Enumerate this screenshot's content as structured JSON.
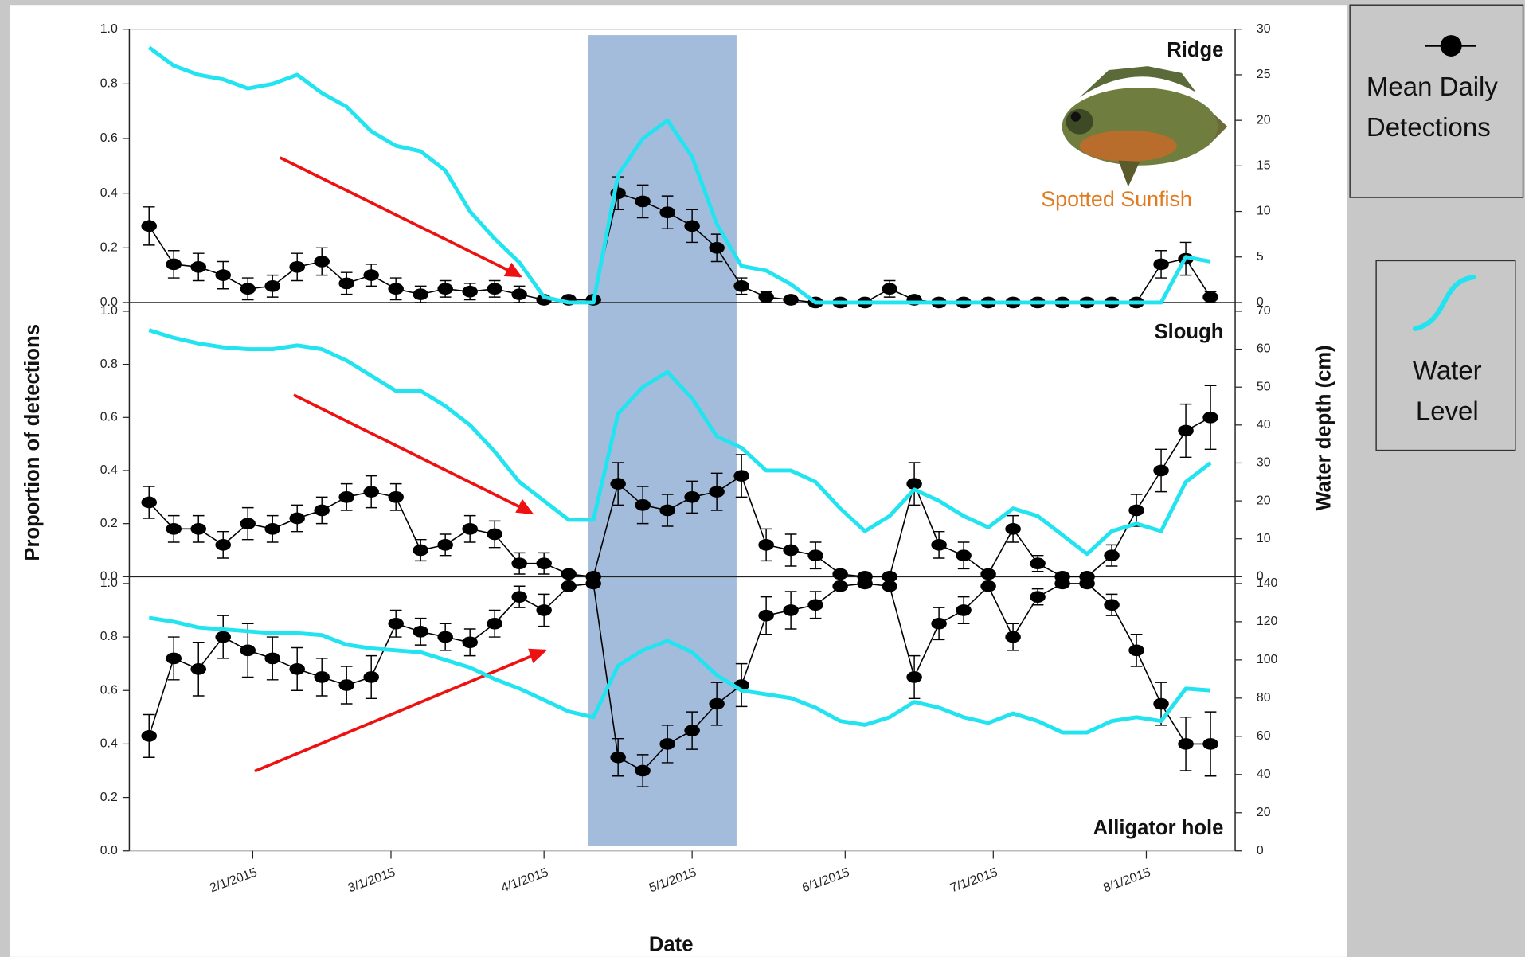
{
  "chart_data": [
    {
      "type": "line",
      "title": "Ridge",
      "annotation": "Spotted Sunfish",
      "span": [
        "4/10/2015",
        "5/10/2015"
      ],
      "span_color": "#a4bcdc",
      "x": [
        "1/11/2015",
        "1/16/2015",
        "1/21/2015",
        "1/26/2015",
        "1/31/2015",
        "2/5/2015",
        "2/10/2015",
        "2/15/2015",
        "2/20/2015",
        "2/25/2015",
        "3/2/2015",
        "3/7/2015",
        "3/12/2015",
        "3/17/2015",
        "3/22/2015",
        "3/27/2015",
        "4/1/2015",
        "4/6/2015",
        "4/11/2015",
        "4/16/2015",
        "4/21/2015",
        "4/26/2015",
        "5/1/2015",
        "5/6/2015",
        "5/11/2015",
        "5/16/2015",
        "5/21/2015",
        "5/26/2015",
        "5/31/2015",
        "6/5/2015",
        "6/10/2015",
        "6/15/2015",
        "6/20/2015",
        "6/25/2015",
        "6/30/2015",
        "7/5/2015",
        "7/10/2015",
        "7/15/2015",
        "7/20/2015",
        "7/25/2015",
        "7/30/2015",
        "8/4/2015",
        "8/9/2015",
        "8/14/2015"
      ],
      "xlim": [
        "1/7/2015",
        "8/19/2015"
      ],
      "ylim": [
        0,
        1
      ],
      "yticks": [
        {
          "value": 0,
          "label": "0.0"
        },
        0.2,
        0.4,
        0.6,
        0.8,
        {
          "value": 1,
          "label": "1.0"
        }
      ],
      "y2lim": [
        0,
        30
      ],
      "y2ticks": [
        0,
        5,
        10,
        15,
        20,
        25,
        30
      ],
      "series": [
        {
          "name": "Mean Daily Detections",
          "color": "#000000",
          "values": [
            0.28,
            0.14,
            0.13,
            0.1,
            0.05,
            0.06,
            0.13,
            0.15,
            0.07,
            0.1,
            0.05,
            0.03,
            0.05,
            0.04,
            0.05,
            0.03,
            0.01,
            0.01,
            0.01,
            0.4,
            0.37,
            0.33,
            0.28,
            0.2,
            0.06,
            0.02,
            0.01,
            0,
            0,
            0,
            0.05,
            0.01,
            0,
            0,
            0,
            0,
            0,
            0,
            0,
            0,
            0,
            0.14,
            0.16,
            0.02
          ],
          "errors": [
            0.07,
            0.05,
            0.05,
            0.05,
            0.04,
            0.04,
            0.05,
            0.05,
            0.04,
            0.04,
            0.04,
            0.03,
            0.03,
            0.03,
            0.03,
            0.03,
            0.01,
            0.01,
            0.01,
            0.06,
            0.06,
            0.06,
            0.06,
            0.05,
            0.03,
            0.02,
            0.01,
            0.01,
            0.01,
            0.01,
            0.03,
            0.01,
            0.01,
            0.01,
            0.01,
            0.01,
            0.01,
            0.01,
            0.01,
            0.01,
            0.01,
            0.05,
            0.06,
            0.02
          ]
        },
        {
          "name": "Water Level",
          "color": "#22e3f0",
          "axis": "y2",
          "values": [
            28,
            26,
            25,
            24.5,
            23.5,
            24,
            25,
            23,
            21.5,
            18.8,
            17.2,
            16.6,
            14.5,
            10,
            7,
            4.4,
            0.6,
            0,
            0,
            14,
            18,
            20,
            16,
            8.6,
            4,
            3.5,
            2,
            0,
            0,
            0,
            0,
            0,
            0,
            0,
            0,
            0,
            0,
            0,
            0,
            0,
            0,
            0,
            5,
            4.5
          ]
        }
      ]
    },
    {
      "type": "line",
      "title": "Slough",
      "ylabel": "Proportion of detections",
      "y2label": "Water depth (cm)",
      "x": [
        "1/11/2015",
        "1/16/2015",
        "1/21/2015",
        "1/26/2015",
        "1/31/2015",
        "2/5/2015",
        "2/10/2015",
        "2/15/2015",
        "2/20/2015",
        "2/25/2015",
        "3/2/2015",
        "3/7/2015",
        "3/12/2015",
        "3/17/2015",
        "3/22/2015",
        "3/27/2015",
        "4/1/2015",
        "4/6/2015",
        "4/11/2015",
        "4/16/2015",
        "4/21/2015",
        "4/26/2015",
        "5/1/2015",
        "5/6/2015",
        "5/11/2015",
        "5/16/2015",
        "5/21/2015",
        "5/26/2015",
        "5/31/2015",
        "6/5/2015",
        "6/10/2015",
        "6/15/2015",
        "6/20/2015",
        "6/25/2015",
        "6/30/2015",
        "7/5/2015",
        "7/10/2015",
        "7/15/2015",
        "7/20/2015",
        "7/25/2015",
        "7/30/2015",
        "8/4/2015",
        "8/9/2015",
        "8/14/2015"
      ],
      "xlim": [
        "1/7/2015",
        "8/19/2015"
      ],
      "ylim": [
        0,
        1
      ],
      "yticks": [
        {
          "value": 0,
          "label": "0.0"
        },
        0.2,
        0.4,
        0.6,
        0.8,
        {
          "value": 1,
          "label": "1.0"
        }
      ],
      "y2lim": [
        0,
        70
      ],
      "y2ticks": [
        0,
        10,
        20,
        30,
        40,
        50,
        60,
        70
      ],
      "series": [
        {
          "color": "#000000",
          "values": [
            0.28,
            0.18,
            0.18,
            0.12,
            0.2,
            0.18,
            0.22,
            0.25,
            0.3,
            0.32,
            0.3,
            0.1,
            0.12,
            0.18,
            0.16,
            0.05,
            0.05,
            0.01,
            0,
            0.35,
            0.27,
            0.25,
            0.3,
            0.32,
            0.38,
            0.12,
            0.1,
            0.08,
            0.01,
            0,
            0,
            0.35,
            0.12,
            0.08,
            0.01,
            0.18,
            0.05,
            0,
            0,
            0.08,
            0.25,
            0.4,
            0.55,
            0.6
          ],
          "errors": [
            0.06,
            0.05,
            0.05,
            0.05,
            0.06,
            0.05,
            0.05,
            0.05,
            0.05,
            0.06,
            0.05,
            0.04,
            0.04,
            0.05,
            0.05,
            0.04,
            0.04,
            0.01,
            0.01,
            0.08,
            0.07,
            0.06,
            0.06,
            0.07,
            0.08,
            0.06,
            0.06,
            0.05,
            0.01,
            0.01,
            0.01,
            0.08,
            0.05,
            0.05,
            0.01,
            0.05,
            0.03,
            0.01,
            0.01,
            0.04,
            0.06,
            0.08,
            0.1,
            0.12
          ]
        },
        {
          "color": "#22e3f0",
          "axis": "y2",
          "values": [
            65,
            63,
            61.5,
            60.5,
            60,
            60,
            61,
            60,
            57,
            53,
            49,
            49,
            45,
            40,
            33,
            25,
            20,
            15,
            15,
            43,
            50,
            54,
            47,
            37,
            34,
            28,
            28,
            25,
            18,
            12,
            16,
            23,
            20,
            16,
            13,
            18,
            16,
            11,
            6,
            12,
            14,
            12,
            25,
            30
          ]
        }
      ]
    },
    {
      "type": "line",
      "title": "Alligator hole",
      "xlabel": "Date",
      "x": [
        "1/11/2015",
        "1/16/2015",
        "1/21/2015",
        "1/26/2015",
        "1/31/2015",
        "2/5/2015",
        "2/10/2015",
        "2/15/2015",
        "2/20/2015",
        "2/25/2015",
        "3/2/2015",
        "3/7/2015",
        "3/12/2015",
        "3/17/2015",
        "3/22/2015",
        "3/27/2015",
        "4/1/2015",
        "4/6/2015",
        "4/11/2015",
        "4/16/2015",
        "4/21/2015",
        "4/26/2015",
        "5/1/2015",
        "5/6/2015",
        "5/11/2015",
        "5/16/2015",
        "5/21/2015",
        "5/26/2015",
        "5/31/2015",
        "6/5/2015",
        "6/10/2015",
        "6/15/2015",
        "6/20/2015",
        "6/25/2015",
        "6/30/2015",
        "7/5/2015",
        "7/10/2015",
        "7/15/2015",
        "7/20/2015",
        "7/25/2015",
        "7/30/2015",
        "8/4/2015",
        "8/9/2015",
        "8/14/2015"
      ],
      "xlim": [
        "1/7/2015",
        "8/19/2015"
      ],
      "xticks": [
        "2/1/2015",
        "3/1/2015",
        "4/1/2015",
        "5/1/2015",
        "6/1/2015",
        "7/1/2015",
        "8/1/2015"
      ],
      "ylim": [
        0,
        1
      ],
      "yticks": [
        {
          "value": 0,
          "label": "0.0"
        },
        0.2,
        0.4,
        0.6,
        0.8,
        {
          "value": 1,
          "label": "1.0"
        }
      ],
      "y2lim": [
        0,
        140
      ],
      "y2ticks": [
        0,
        20,
        40,
        60,
        80,
        100,
        120,
        140
      ],
      "series": [
        {
          "color": "#000000",
          "values": [
            0.43,
            0.72,
            0.68,
            0.8,
            0.75,
            0.72,
            0.68,
            0.65,
            0.62,
            0.65,
            0.85,
            0.82,
            0.8,
            0.78,
            0.85,
            0.95,
            0.9,
            0.99,
            1.0,
            0.35,
            0.3,
            0.4,
            0.45,
            0.55,
            0.62,
            0.88,
            0.9,
            0.92,
            0.99,
            1.0,
            0.99,
            0.65,
            0.85,
            0.9,
            0.99,
            0.8,
            0.95,
            1.0,
            1.0,
            0.92,
            0.75,
            0.55,
            0.4,
            0.4
          ],
          "errors": [
            0.08,
            0.08,
            0.1,
            0.08,
            0.1,
            0.08,
            0.08,
            0.07,
            0.07,
            0.08,
            0.05,
            0.05,
            0.05,
            0.05,
            0.05,
            0.04,
            0.06,
            0.01,
            0.01,
            0.07,
            0.06,
            0.07,
            0.07,
            0.08,
            0.08,
            0.07,
            0.07,
            0.05,
            0.01,
            0.01,
            0.01,
            0.08,
            0.06,
            0.05,
            0.01,
            0.05,
            0.03,
            0.01,
            0.01,
            0.04,
            0.06,
            0.08,
            0.1,
            0.12
          ]
        },
        {
          "color": "#22e3f0",
          "axis": "y2",
          "values": [
            122,
            120,
            117,
            116,
            115,
            114,
            114,
            113,
            108,
            106,
            105,
            104,
            100,
            96,
            90,
            85,
            79,
            73,
            70,
            97,
            105,
            110,
            104,
            92,
            84,
            82,
            80,
            75,
            68,
            66,
            70,
            78,
            75,
            70,
            67,
            72,
            68,
            62,
            62,
            68,
            70,
            68,
            85,
            84
          ]
        }
      ]
    }
  ]
}
